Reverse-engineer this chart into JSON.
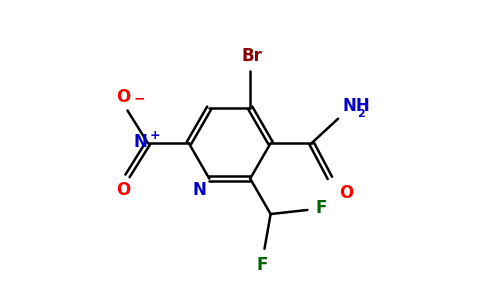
{
  "background_color": "#ffffff",
  "colors": {
    "bond": "#000000",
    "Br": "#8b0000",
    "N_ring": "#0000cd",
    "NO2_N": "#0000cd",
    "O": "#ff0000",
    "F": "#006400",
    "amide_O": "#ff0000",
    "NH2": "#0000cd"
  },
  "xlim": [
    -4.5,
    5.5
  ],
  "ylim": [
    -3.2,
    4.0
  ],
  "figsize": [
    4.84,
    3.0
  ],
  "dpi": 100
}
